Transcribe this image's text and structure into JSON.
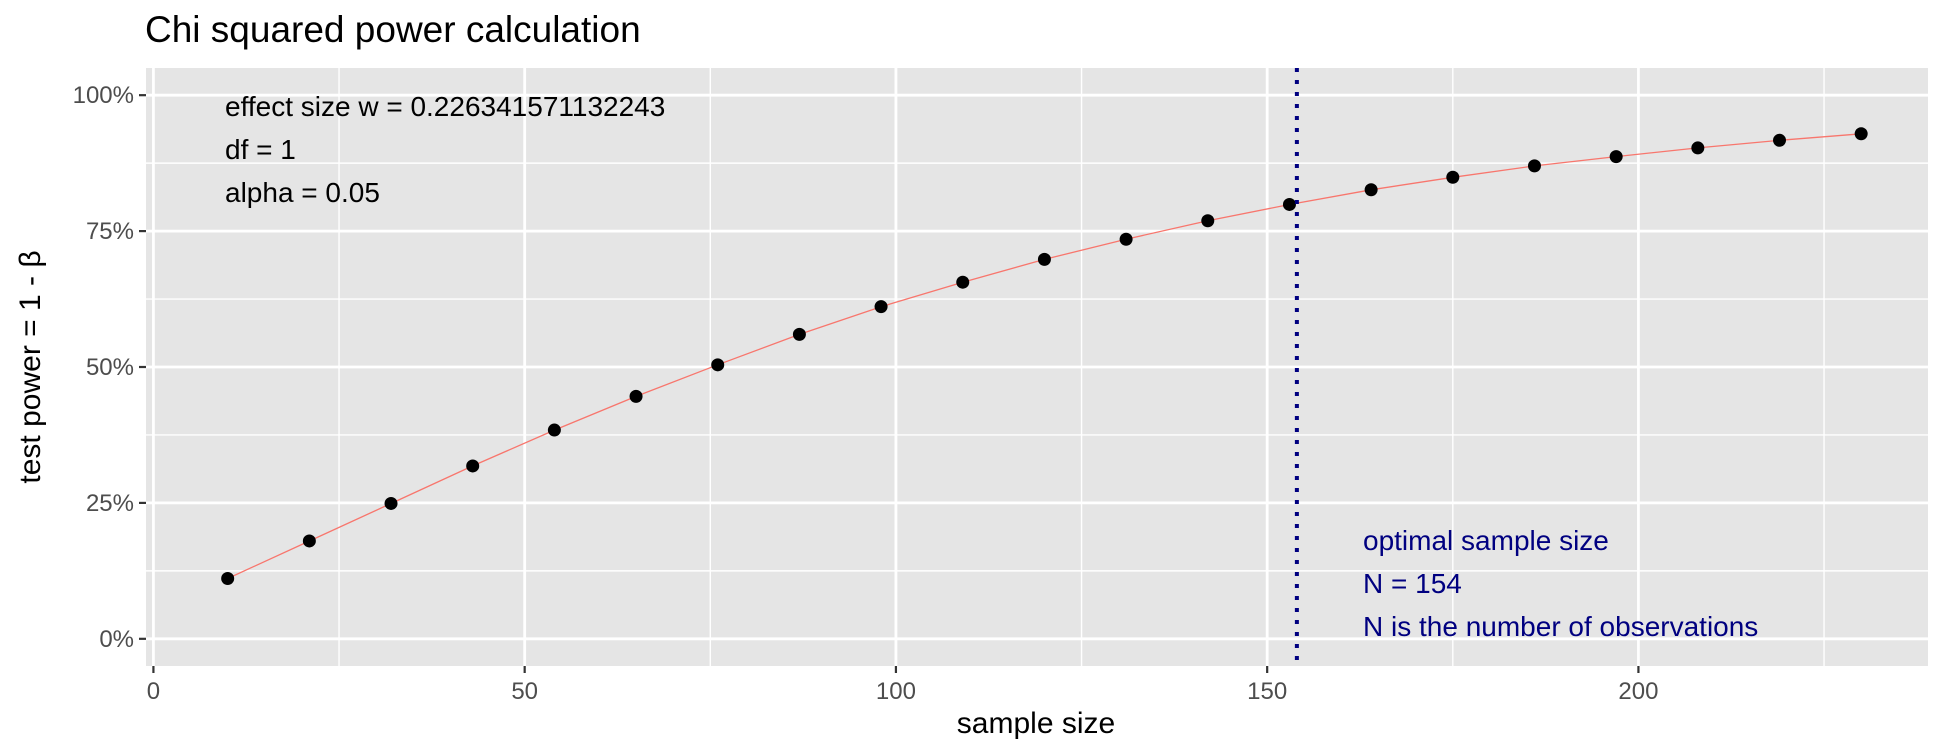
{
  "chart_data": {
    "type": "line",
    "title": "Chi squared power calculation",
    "xlabel": "sample size",
    "ylabel": "test power = 1 - β",
    "xlim": [
      -1,
      239
    ],
    "ylim": [
      -0.05,
      1.05
    ],
    "x_ticks": [
      0,
      50,
      100,
      150,
      200
    ],
    "x_tick_labels": [
      "0",
      "50",
      "100",
      "150",
      "200"
    ],
    "x_minor_ticks": [
      25,
      75,
      125,
      175,
      225
    ],
    "y_ticks": [
      0,
      0.25,
      0.5,
      0.75,
      1.0
    ],
    "y_tick_labels": [
      "0%",
      "25%",
      "50%",
      "75%",
      "100%"
    ],
    "y_minor_ticks": [
      0.125,
      0.375,
      0.625,
      0.875
    ],
    "grid": true,
    "series": [
      {
        "line_color": "#f8766d",
        "point_color": "#000000",
        "x": [
          10,
          21,
          32,
          43,
          54,
          65,
          76,
          87,
          98,
          109,
          120,
          131,
          142,
          153,
          164,
          175,
          186,
          197,
          208,
          219,
          230
        ],
        "y": [
          0.111,
          0.18,
          0.249,
          0.318,
          0.384,
          0.446,
          0.504,
          0.56,
          0.611,
          0.656,
          0.698,
          0.735,
          0.769,
          0.799,
          0.826,
          0.849,
          0.87,
          0.887,
          0.903,
          0.917,
          0.929
        ]
      }
    ],
    "vline": {
      "x": 154,
      "color": "#000080",
      "style": "dotted"
    },
    "annotations": {
      "top_left": [
        "effect size w = 0.226341571132243",
        "df = 1",
        "alpha = 0.05"
      ],
      "bottom_right": [
        "optimal sample size",
        "N = 154",
        "N is the number of observations"
      ]
    },
    "colors": {
      "panel_bg": "#e5e5e5",
      "grid": "#ffffff",
      "annotation_blue": "#000080"
    }
  }
}
